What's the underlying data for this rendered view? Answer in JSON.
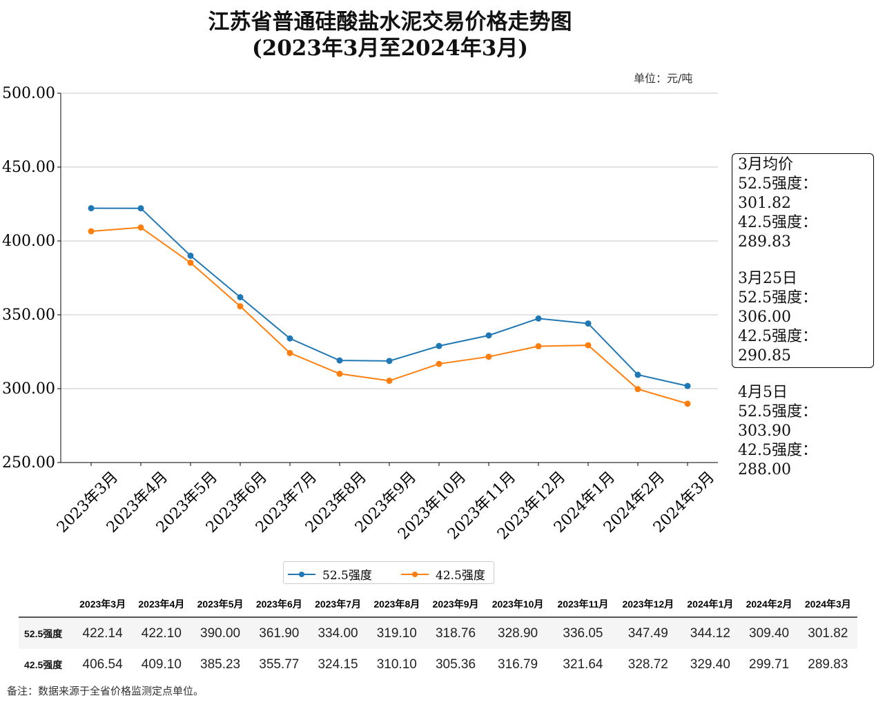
{
  "chart_data": {
    "type": "line",
    "title": "江苏省普通硅酸盐水泥交易价格走势图",
    "subtitle": "(2023年3月至2024年3月)",
    "unit": "单位：元/吨",
    "categories": [
      "2023年3月",
      "2023年4月",
      "2023年5月",
      "2023年6月",
      "2023年7月",
      "2023年8月",
      "2023年9月",
      "2023年10月",
      "2023年11月",
      "2023年12月",
      "2024年1月",
      "2024年2月",
      "2024年3月"
    ],
    "series": [
      {
        "name": "52.5强度",
        "color": "#1f77b4",
        "values": [
          422.14,
          422.1,
          390.0,
          361.9,
          334.0,
          319.1,
          318.76,
          328.9,
          336.05,
          347.49,
          344.12,
          309.4,
          301.82
        ]
      },
      {
        "name": "42.5强度",
        "color": "#ff7f0e",
        "values": [
          406.54,
          409.1,
          385.23,
          355.77,
          324.15,
          310.1,
          305.36,
          316.79,
          321.64,
          328.72,
          329.4,
          299.71,
          289.83
        ]
      }
    ],
    "ylim": [
      250,
      500
    ],
    "yticks": [
      "250.00",
      "300.00",
      "350.00",
      "400.00",
      "450.00",
      "500.00"
    ],
    "grid": true,
    "legend": "bottom-center"
  },
  "annotation": [
    [
      "3月均价",
      "52.5强度：  301.82",
      "42.5强度：  289.83"
    ],
    [
      "3月25日",
      "52.5强度：  306.00",
      "42.5强度：  290.85"
    ],
    [
      "4月5日",
      "52.5强度：  303.90",
      "42.5强度：  288.00"
    ]
  ],
  "table": {
    "headers": [
      "2023年3月",
      "2023年4月",
      "2023年5月",
      "2023年6月",
      "2023年7月",
      "2023年8月",
      "2023年9月",
      "2023年10月",
      "2023年11月",
      "2023年12月",
      "2024年1月",
      "2024年2月",
      "2024年3月"
    ],
    "rows": [
      {
        "label": "52.5强度",
        "values": [
          "422.14",
          "422.10",
          "390.00",
          "361.90",
          "334.00",
          "319.10",
          "318.76",
          "328.90",
          "336.05",
          "347.49",
          "344.12",
          "309.40",
          "301.82"
        ]
      },
      {
        "label": "42.5强度",
        "values": [
          "406.54",
          "409.10",
          "385.23",
          "355.77",
          "324.15",
          "310.10",
          "305.36",
          "316.79",
          "321.64",
          "328.72",
          "329.40",
          "299.71",
          "289.83"
        ]
      }
    ]
  },
  "note": "备注：数据来源于全省价格监测定点单位。"
}
